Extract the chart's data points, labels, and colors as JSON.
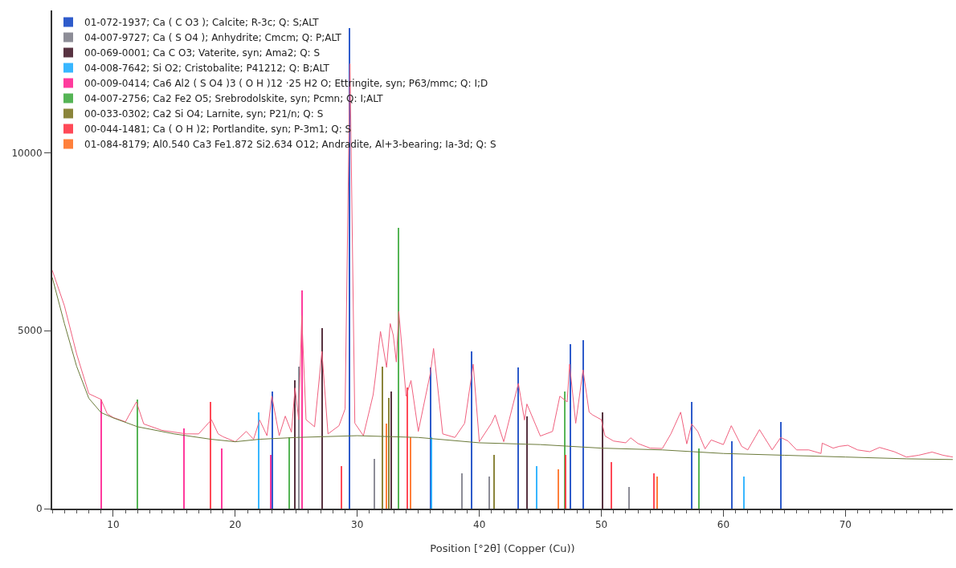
{
  "chart_data": {
    "type": "line",
    "xlabel": "Position [°2θ] (Copper (Cu))",
    "xlim": [
      5,
      78.8
    ],
    "xticks": [
      10,
      20,
      30,
      40,
      50,
      60,
      70
    ],
    "ylim": [
      0,
      14000
    ],
    "yticks": [
      0,
      5000,
      10000
    ],
    "legend": "top left",
    "marker": "none",
    "line_style": "solid",
    "series": [
      {
        "color": "#f0607e",
        "x": [
          5,
          6,
          7,
          8,
          9,
          9.5,
          10,
          11,
          11.9,
          12.5,
          14,
          15,
          16,
          17,
          18.05,
          18.6,
          19,
          20,
          20.9,
          21.5,
          22,
          22.6,
          23.0,
          23.6,
          24.1,
          24.6,
          24.9,
          25.2,
          25.45,
          25.8,
          26.5,
          27.1,
          27.6,
          28.5,
          29.0,
          29.4,
          29.8,
          30.5,
          31.3,
          31.5,
          31.9,
          32.4,
          32.7,
          32.95,
          33.2,
          33.4,
          34.0,
          34.4,
          35.0,
          36.0,
          36.25,
          37.0,
          38.0,
          38.8,
          39.5,
          40.0,
          41.0,
          41.3,
          42.0,
          43.2,
          43.7,
          43.9,
          45.0,
          46.0,
          46.6,
          47.2,
          47.4,
          47.9,
          48.5,
          49.0,
          49.3,
          50.0,
          50.3,
          51.0,
          52.0,
          52.4,
          53.0,
          54.0,
          55.0,
          55.7,
          56.5,
          57.0,
          57.4,
          57.9,
          58.5,
          59.0,
          60.0,
          60.65,
          61.5,
          62.0,
          62.96,
          64.0,
          64.7,
          65.3,
          66.0,
          67.0,
          68.0,
          68.1,
          69.0,
          69.5,
          70.2,
          71.0,
          72.0,
          72.8,
          74.0,
          75.0,
          76.0,
          77.1,
          78.0,
          78.8
        ],
        "values": [
          6700,
          5700,
          4350,
          3230,
          3070,
          2670,
          2560,
          2440,
          3000,
          2380,
          2200,
          2150,
          2100,
          2100,
          2500,
          2100,
          2020,
          1880,
          2170,
          1950,
          2490,
          2050,
          3160,
          2050,
          2600,
          2150,
          3390,
          2500,
          5430,
          2500,
          2300,
          4420,
          2100,
          2330,
          2800,
          12500,
          2400,
          2050,
          3200,
          3740,
          4980,
          3970,
          5200,
          4870,
          4120,
          5540,
          3160,
          3600,
          2170,
          3830,
          4500,
          2100,
          2000,
          2400,
          4060,
          1880,
          2400,
          2630,
          1880,
          3520,
          2490,
          2940,
          2040,
          2170,
          3160,
          3000,
          4060,
          2400,
          3900,
          2710,
          2630,
          2500,
          2040,
          1900,
          1850,
          1990,
          1830,
          1700,
          1690,
          2100,
          2710,
          1820,
          2380,
          2170,
          1680,
          1930,
          1800,
          2330,
          1750,
          1650,
          2220,
          1650,
          2000,
          1900,
          1650,
          1650,
          1550,
          1840,
          1700,
          1750,
          1780,
          1650,
          1600,
          1720,
          1600,
          1450,
          1500,
          1590,
          1500,
          1450
        ]
      },
      {
        "color": "#6b7a3a",
        "x": [
          5,
          6,
          7,
          8,
          9,
          10,
          12,
          15,
          18,
          20,
          22,
          25,
          30,
          35,
          40,
          45,
          50,
          55,
          60,
          65,
          70,
          75,
          78.8
        ],
        "values": [
          6500,
          5200,
          4000,
          3100,
          2700,
          2550,
          2300,
          2100,
          1950,
          1880,
          1950,
          2000,
          2050,
          2000,
          1850,
          1800,
          1700,
          1650,
          1550,
          1500,
          1450,
          1400,
          1380
        ]
      },
      {
        "type": "bar",
        "name": "01-072-1937; Ca ( C O3 ); Calcite; R-3c; Q: S;ALT",
        "color": "#0a3fc2",
        "x": [
          23.05,
          29.4,
          36.0,
          39.4,
          43.2,
          47.5,
          48.5,
          57.4,
          60.7,
          64.7
        ],
        "values": [
          3300,
          13500,
          3970,
          4420,
          3970,
          4620,
          4730,
          3000,
          1900,
          2440
        ]
      },
      {
        "type": "bar",
        "name": "04-007-9727; Ca ( S O4 ); Anhydrite; Cmcm; Q: P;ALT",
        "color": "#7a7a86",
        "x": [
          25.2,
          31.4,
          38.6,
          40.8,
          52.3
        ],
        "values": [
          4000,
          1400,
          1000,
          900,
          600
        ]
      },
      {
        "type": "bar",
        "name": "00-069-0001; Ca C O3; Vaterite, syn; Ama2; Q: S",
        "color": "#3b1020",
        "x": [
          24.9,
          27.1,
          32.8,
          43.9,
          50.1
        ],
        "values": [
          3600,
          5070,
          3300,
          2600,
          2700
        ]
      },
      {
        "type": "bar",
        "name": "04-008-7642; Si O2; Cristobalite; P41212; Q: B;ALT",
        "color": "#16aaff",
        "x": [
          21.9,
          36.1,
          44.7,
          61.7
        ],
        "values": [
          2700,
          2000,
          1200,
          900
        ]
      },
      {
        "type": "bar",
        "name": "00-009-0414; Ca6 Al2 ( S O4 )3 ( O H )12 ·25 H2 O; Ettringite, syn; P63/mmc; Q: I;D",
        "color": "#ff1a8c",
        "x": [
          9.0,
          15.8,
          18.9,
          22.9,
          25.5
        ],
        "values": [
          3070,
          2260,
          1700,
          1500,
          6140
        ]
      },
      {
        "type": "bar",
        "name": "04-007-2756; Ca2 Fe2 O5; Srebrodolskite, syn; Pcmn; Q: I;ALT",
        "color": "#38a838",
        "x": [
          12.0,
          24.4,
          33.4,
          47.0,
          58.0
        ],
        "values": [
          3070,
          2000,
          7890,
          3300,
          1700
        ]
      },
      {
        "type": "bar",
        "name": "00-033-0302; Ca2 Si O4; Larnite, syn; P21/n; Q: S",
        "color": "#77701a",
        "x": [
          32.1,
          32.6,
          41.2
        ],
        "values": [
          4000,
          3100,
          1500
        ]
      },
      {
        "type": "bar",
        "name": "00-044-1481; Ca ( O H )2; Portlandite, syn; P-3m1; Q: S",
        "color": "#ff2a3a",
        "x": [
          18.0,
          28.7,
          34.1,
          47.1,
          50.8,
          54.3
        ],
        "values": [
          3000,
          1200,
          3400,
          1500,
          1300,
          1000
        ]
      },
      {
        "type": "bar",
        "name": "01-084-8179; Al0.540 Ca3 Fe1.872 Si2.634 O12; Andradite, Al+3-bearing; Ia-3d; Q: S",
        "color": "#ff6a1a",
        "x": [
          32.4,
          34.4,
          46.5,
          54.6
        ],
        "values": [
          2400,
          2000,
          1100,
          900
        ]
      }
    ]
  }
}
